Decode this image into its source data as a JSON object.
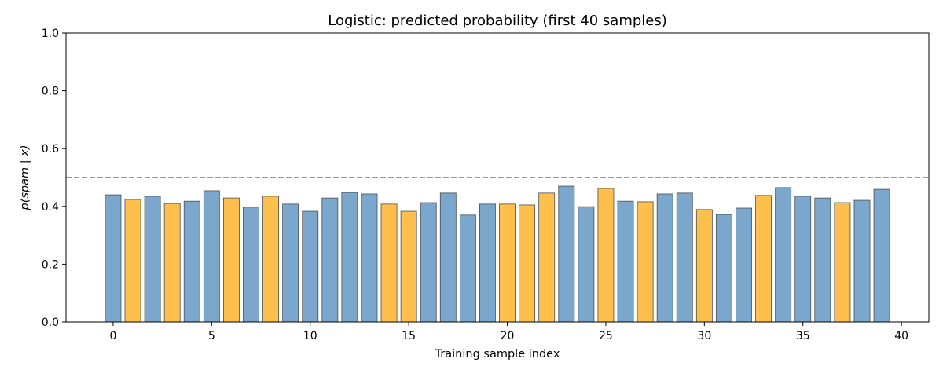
{
  "chart_data": {
    "type": "bar",
    "title": "Logistic: predicted probability (first 40 samples)",
    "xlabel": "Training sample index",
    "ylabel": "p(spam | x)",
    "xlim": [
      -2.39,
      41.39
    ],
    "ylim": [
      0,
      1.0
    ],
    "xticks": [
      0,
      5,
      10,
      15,
      20,
      25,
      30,
      35,
      40
    ],
    "yticks": [
      "0.0",
      "0.2",
      "0.4",
      "0.6",
      "0.8",
      "1.0"
    ],
    "threshold": 0.5,
    "grid": false,
    "colors": {
      "blue": "#7ba7cc",
      "orange": "#ffbf4d",
      "edge": "#4a4f55",
      "threshold": "#999999"
    },
    "x": [
      0,
      1,
      2,
      3,
      4,
      5,
      6,
      7,
      8,
      9,
      10,
      11,
      12,
      13,
      14,
      15,
      16,
      17,
      18,
      19,
      20,
      21,
      22,
      23,
      24,
      25,
      26,
      27,
      28,
      29,
      30,
      31,
      32,
      33,
      34,
      35,
      36,
      37,
      38,
      39
    ],
    "values": [
      0.44,
      0.424,
      0.435,
      0.41,
      0.418,
      0.454,
      0.429,
      0.397,
      0.435,
      0.408,
      0.383,
      0.429,
      0.448,
      0.443,
      0.408,
      0.383,
      0.413,
      0.446,
      0.37,
      0.408,
      0.408,
      0.405,
      0.446,
      0.47,
      0.399,
      0.462,
      0.418,
      0.416,
      0.443,
      0.446,
      0.389,
      0.372,
      0.394,
      0.438,
      0.465,
      0.435,
      0.429,
      0.413,
      0.421,
      0.459
    ],
    "bar_color": [
      "blue",
      "orange",
      "blue",
      "orange",
      "blue",
      "blue",
      "orange",
      "blue",
      "orange",
      "blue",
      "blue",
      "blue",
      "blue",
      "blue",
      "orange",
      "orange",
      "blue",
      "blue",
      "blue",
      "blue",
      "orange",
      "orange",
      "orange",
      "blue",
      "blue",
      "orange",
      "blue",
      "orange",
      "blue",
      "blue",
      "orange",
      "blue",
      "blue",
      "orange",
      "blue",
      "blue",
      "blue",
      "orange",
      "blue",
      "blue"
    ]
  }
}
